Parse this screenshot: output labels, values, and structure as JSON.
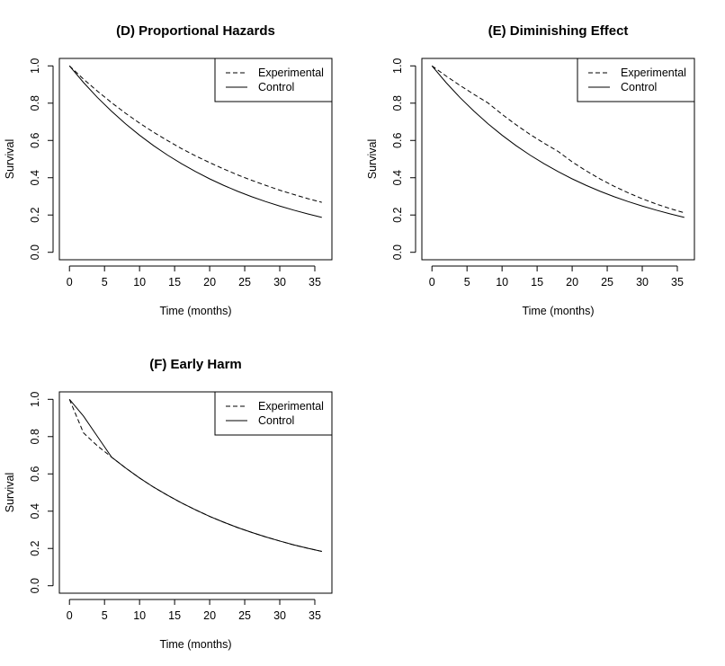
{
  "chart_data": [
    {
      "type": "line",
      "title": "(D) Proportional Hazards",
      "xlabel": "Time (months)",
      "ylabel": "Survival",
      "xlim": [
        0,
        36
      ],
      "ylim": [
        0,
        1
      ],
      "xticks": [
        "0",
        "5",
        "10",
        "15",
        "20",
        "25",
        "30",
        "35"
      ],
      "yticks": [
        "0.0",
        "0.2",
        "0.4",
        "0.6",
        "0.8",
        "1.0"
      ],
      "grid": false,
      "legend_position": "top-right",
      "x": [
        0,
        2,
        4,
        6,
        8,
        10,
        12,
        14,
        16,
        18,
        20,
        22,
        24,
        26,
        28,
        30,
        32,
        34,
        36
      ],
      "series": [
        {
          "name": "Experimental",
          "style": "dashed",
          "values": [
            1.0,
            0.929,
            0.864,
            0.803,
            0.746,
            0.693,
            0.644,
            0.599,
            0.556,
            0.517,
            0.481,
            0.447,
            0.415,
            0.386,
            0.359,
            0.333,
            0.31,
            0.288,
            0.268
          ]
        },
        {
          "name": "Control",
          "style": "solid",
          "values": [
            1.0,
            0.911,
            0.83,
            0.757,
            0.689,
            0.628,
            0.572,
            0.521,
            0.475,
            0.433,
            0.394,
            0.359,
            0.327,
            0.298,
            0.272,
            0.248,
            0.226,
            0.206,
            0.187
          ]
        }
      ]
    },
    {
      "type": "line",
      "title": "(E) Diminishing Effect",
      "xlabel": "Time (months)",
      "ylabel": "Survival",
      "xlim": [
        0,
        36
      ],
      "ylim": [
        0,
        1
      ],
      "xticks": [
        "0",
        "5",
        "10",
        "15",
        "20",
        "25",
        "30",
        "35"
      ],
      "yticks": [
        "0.0",
        "0.2",
        "0.4",
        "0.6",
        "0.8",
        "1.0"
      ],
      "grid": false,
      "legend_position": "top-right",
      "x": [
        0,
        2,
        4,
        6,
        8,
        10,
        12,
        14,
        16,
        18,
        20,
        22,
        24,
        26,
        28,
        30,
        32,
        34,
        36
      ],
      "series": [
        {
          "name": "Experimental",
          "style": "dashed",
          "values": [
            1.0,
            0.946,
            0.895,
            0.847,
            0.801,
            0.74,
            0.684,
            0.632,
            0.585,
            0.541,
            0.485,
            0.437,
            0.393,
            0.354,
            0.319,
            0.287,
            0.259,
            0.234,
            0.212
          ]
        },
        {
          "name": "Control",
          "style": "solid",
          "values": [
            1.0,
            0.911,
            0.83,
            0.757,
            0.689,
            0.628,
            0.572,
            0.521,
            0.475,
            0.433,
            0.394,
            0.359,
            0.327,
            0.298,
            0.272,
            0.248,
            0.226,
            0.206,
            0.187
          ]
        }
      ]
    },
    {
      "type": "line",
      "title": "(F) Early Harm",
      "xlabel": "Time (months)",
      "ylabel": "Survival",
      "xlim": [
        0,
        36
      ],
      "ylim": [
        0,
        1
      ],
      "xticks": [
        "0",
        "5",
        "10",
        "15",
        "20",
        "25",
        "30",
        "35"
      ],
      "yticks": [
        "0.0",
        "0.2",
        "0.4",
        "0.6",
        "0.8",
        "1.0"
      ],
      "grid": false,
      "legend_position": "top-right",
      "x": [
        0,
        2,
        4,
        6,
        8,
        10,
        12,
        14,
        16,
        18,
        20,
        22,
        24,
        26,
        28,
        30,
        32,
        34,
        36
      ],
      "series": [
        {
          "name": "Experimental",
          "style": "dashed",
          "values": [
            1.0,
            0.82,
            0.75,
            0.69,
            0.632,
            0.578,
            0.529,
            0.485,
            0.444,
            0.407,
            0.372,
            0.341,
            0.312,
            0.286,
            0.262,
            0.24,
            0.219,
            0.201,
            0.184
          ]
        },
        {
          "name": "Control",
          "style": "solid",
          "values": [
            1.0,
            0.91,
            0.8,
            0.69,
            0.632,
            0.578,
            0.529,
            0.485,
            0.444,
            0.407,
            0.372,
            0.341,
            0.312,
            0.286,
            0.262,
            0.24,
            0.219,
            0.201,
            0.184
          ]
        }
      ]
    }
  ]
}
